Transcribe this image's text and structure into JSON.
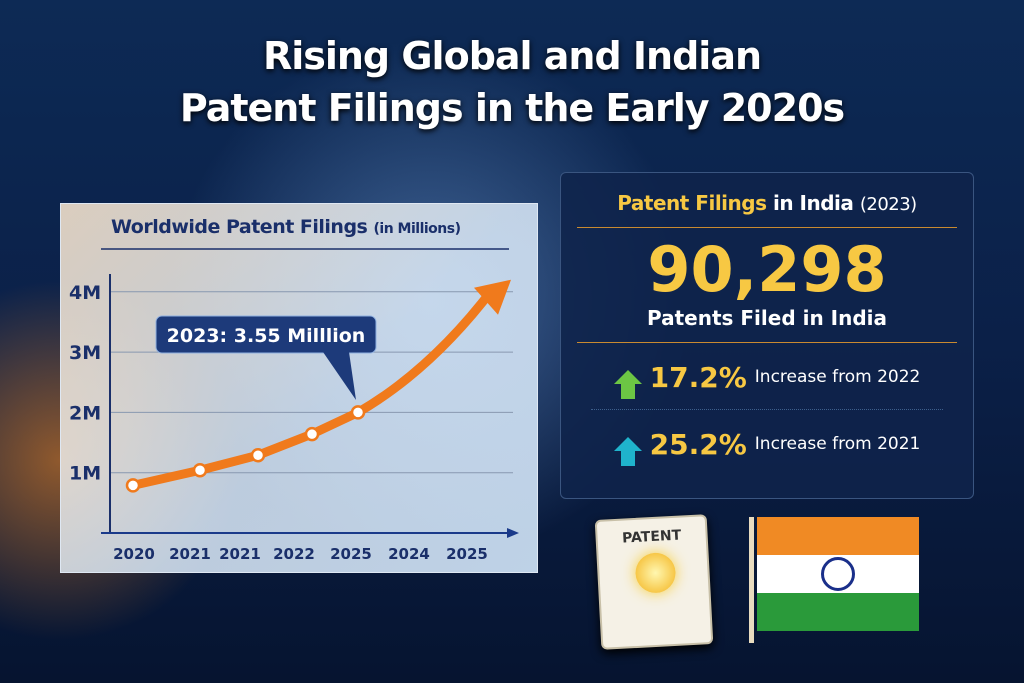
{
  "title": {
    "line1": "Rising Global and Indian",
    "line2": "Patent Filings in the Early 2020s"
  },
  "chart_data": {
    "type": "line",
    "title": "Worldwide Patent Filings",
    "title_suffix": "(in Millions)",
    "x_tick_labels": [
      "2020",
      "2021",
      "2021",
      "2022",
      "2025",
      "2024",
      "2025"
    ],
    "y_tick_labels": [
      "1M",
      "2M",
      "3M",
      "4M"
    ],
    "y_ticks": [
      1,
      2,
      3,
      4
    ],
    "ylim": [
      0,
      4.3
    ],
    "points": [
      0.79,
      1.04,
      1.29,
      1.64,
      2.0
    ],
    "trend_end": 4.2,
    "annotation": "2023: 3.55 Milllion",
    "grid": true,
    "line_color": "#f07a1c"
  },
  "india": {
    "heading_gold": "Patent Filings",
    "heading_white": "in India",
    "heading_year": "(2023)",
    "total": "90,298",
    "total_label": "Patents Filed in India",
    "stats": [
      {
        "value": "17.2%",
        "label": "Increase from 2022",
        "arrow_color": "#6cc644"
      },
      {
        "value": "25.2%",
        "label": "Increase from 2021",
        "arrow_color": "#1fb3cc"
      }
    ]
  },
  "patent_doc": {
    "label": "PATENT"
  },
  "flag": {
    "colors": [
      "#f08a24",
      "#ffffff",
      "#2a9a3a"
    ],
    "chakra": "#1a2f8a"
  }
}
